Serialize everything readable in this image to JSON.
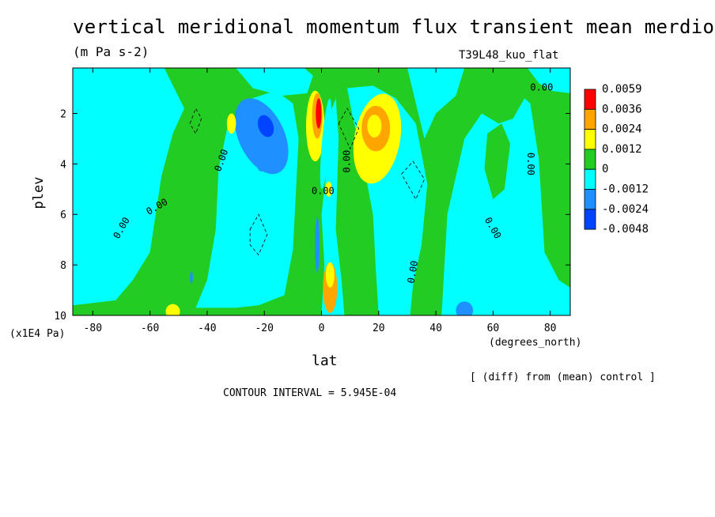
{
  "title": "vertical meridional momentum flux transient mean merdional",
  "units": "(m Pa s-2)",
  "run": "T39L48_kuo_flat",
  "diff_note": "[ (diff) from (mean) control ]",
  "contour_note": "CONTOUR INTERVAL = 5.945E-04",
  "chart_data": {
    "type": "heatmap",
    "title": "vertical meridional momentum flux transient mean merdional",
    "xlabel": "lat",
    "x_units": "(degrees_north)",
    "ylabel": "plev",
    "y_scale_label": "(x1E4 Pa)",
    "xlim": [
      -87,
      87
    ],
    "ylim": [
      10,
      0.2
    ],
    "x_ticks": [
      "-80",
      "-60",
      "-40",
      "-20",
      "0",
      "20",
      "40",
      "60",
      "80"
    ],
    "x_tick_values": [
      -80,
      -60,
      -40,
      -20,
      0,
      20,
      40,
      60,
      80
    ],
    "y_ticks": [
      "2",
      "4",
      "6",
      "8",
      "10"
    ],
    "y_tick_values": [
      2,
      4,
      6,
      8,
      10
    ],
    "colorbar": {
      "labels": [
        "0.0059",
        "0.0036",
        "0.0024",
        "0.0012",
        "0",
        "-0.0012",
        "-0.0024",
        "-0.0048"
      ],
      "colors": [
        "#ff0000",
        "#ffa500",
        "#ffff00",
        "#22cc22",
        "#00ffff",
        "#1e90ff",
        "#0044ff"
      ]
    },
    "contour_labels": [
      "0.00",
      "0.00",
      "0.00",
      "0.00",
      "0.00",
      "0.00",
      "0.00",
      "0.00",
      "0.00"
    ],
    "features": [
      {
        "lat": -20,
        "plev": 2.7,
        "value": -0.003
      },
      {
        "lat": -23,
        "plev": 3.6,
        "value": -0.0024
      },
      {
        "lat": -0.5,
        "plev": 2.2,
        "value": 0.0059
      },
      {
        "lat": -2,
        "plev": 2.8,
        "value": 0.0024
      },
      {
        "lat": 2,
        "plev": 3.2,
        "value": -0.0018
      },
      {
        "lat": 18,
        "plev": 2.6,
        "value": 0.003
      },
      {
        "lat": 21,
        "plev": 3.8,
        "value": 0.0014
      },
      {
        "lat": 3,
        "plev": 8.7,
        "value": 0.0024
      },
      {
        "lat": -3,
        "plev": 9.0,
        "value": -0.0012
      },
      {
        "lat": -33,
        "plev": 2.4,
        "value": 0.0018
      },
      {
        "lat": 50,
        "plev": 9.8,
        "value": -0.002
      },
      {
        "lat": -52,
        "plev": 9.8,
        "value": 0.0018
      }
    ]
  }
}
